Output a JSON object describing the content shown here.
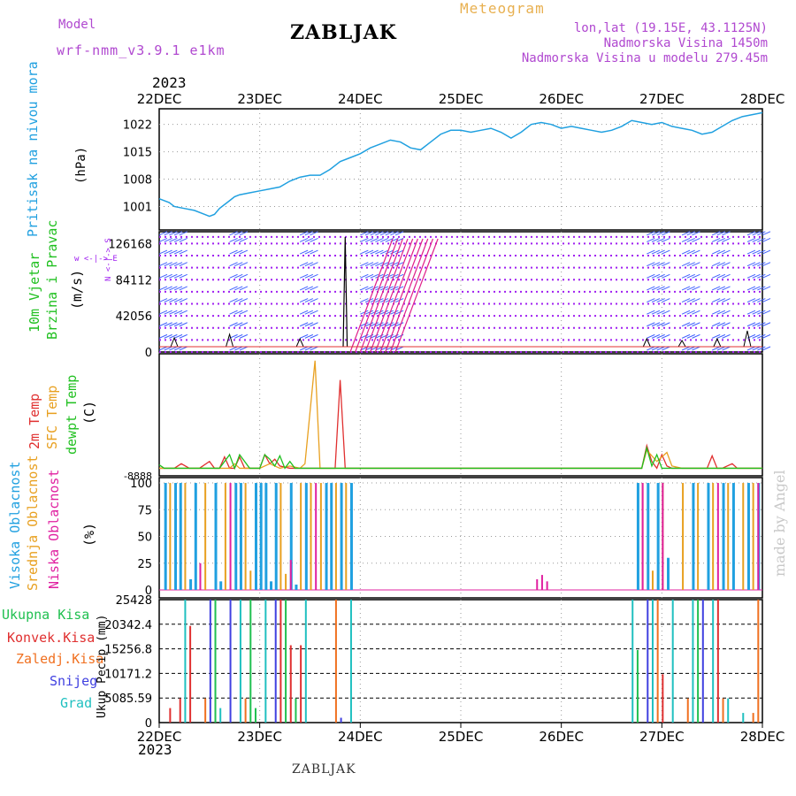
{
  "header": {
    "model_label": "Model",
    "model_name": "wrf-nmm_v3.9.1  e1km",
    "station": "ZABLJAK",
    "product": "Meteogram",
    "coords": "lon,lat (19.15E, 43.1125N)",
    "elevation": "Nadmorska Visina 1450m",
    "model_elevation": "Nadmorska Visina u modelu 279.45m",
    "year_top": "2023",
    "year_bottom": "2023",
    "footer": "ZABLJAK",
    "credit": "made by Angel"
  },
  "colors": {
    "pressure": "#20a0e0",
    "wind_dots": "#a020f0",
    "wind_barb": "#4060ff",
    "wind_magenta": "#e0208a",
    "t2m": "#e03030",
    "tsfc": "#e8a020",
    "dewpt": "#20c020",
    "high_cloud": "#20a0e0",
    "mid_cloud": "#e8a020",
    "low_cloud": "#e020a0",
    "precip_total": "#20c050",
    "precip_conv": "#e03030",
    "precip_frozen": "#f07020",
    "snow": "#4040e0",
    "hail": "#20c0c0"
  },
  "chart_data": [
    {
      "type": "line",
      "panel": "pressure",
      "label_left": "Pritisak na nivou mora",
      "ylabel": "(hPa)",
      "xticks": [
        "22DEC",
        "23DEC",
        "24DEC",
        "25DEC",
        "26DEC",
        "27DEC",
        "28DEC"
      ],
      "xlim": [
        0,
        6
      ],
      "ylim": [
        995,
        1026
      ],
      "yticks": [
        1001,
        1008,
        1015,
        1022
      ],
      "grid": true,
      "x": [
        0,
        0.1,
        0.15,
        0.25,
        0.35,
        0.45,
        0.5,
        0.55,
        0.6,
        0.65,
        0.7,
        0.75,
        0.8,
        0.9,
        1.0,
        1.1,
        1.2,
        1.3,
        1.4,
        1.5,
        1.6,
        1.7,
        1.8,
        1.9,
        2.0,
        2.1,
        2.2,
        2.3,
        2.4,
        2.5,
        2.6,
        2.7,
        2.8,
        2.9,
        3.0,
        3.1,
        3.2,
        3.3,
        3.4,
        3.5,
        3.6,
        3.7,
        3.8,
        3.9,
        4.0,
        4.1,
        4.2,
        4.3,
        4.4,
        4.5,
        4.6,
        4.7,
        4.8,
        4.9,
        5.0,
        5.1,
        5.2,
        5.3,
        5.4,
        5.5,
        5.6,
        5.7,
        5.8,
        5.9,
        6.0
      ],
      "values": [
        1003,
        1002,
        1001,
        1000.5,
        1000,
        999,
        998.5,
        999,
        1000.5,
        1001.5,
        1002.5,
        1003.5,
        1004,
        1004.5,
        1005,
        1005.5,
        1006,
        1007.5,
        1008.5,
        1009,
        1009,
        1010.5,
        1012.5,
        1013.5,
        1014.5,
        1016,
        1017,
        1018,
        1017.5,
        1016,
        1015.5,
        1017.5,
        1019.5,
        1020.5,
        1020.5,
        1020,
        1020.5,
        1021,
        1020,
        1018.5,
        1020,
        1022,
        1022.5,
        1022,
        1021,
        1021.5,
        1021,
        1020.5,
        1020,
        1020.5,
        1021.5,
        1023,
        1022.5,
        1022,
        1022.5,
        1021.5,
        1021,
        1020.5,
        1019.5,
        1020,
        1021.5,
        1023,
        1024,
        1024.5,
        1025
      ]
    },
    {
      "type": "scatter",
      "panel": "wind",
      "label_left": "10m Vjetar",
      "label_left2": "Brzina i Pravac",
      "ylabel": "(m/s)",
      "compass": "w <-|-> E",
      "compass_ns": "N <-|-> S",
      "ylim": [
        0,
        140000
      ],
      "yticks": [
        0,
        42056,
        84112,
        126168
      ],
      "rows": [
        0,
        14019,
        28037,
        42056,
        56075,
        70093,
        84112,
        98131,
        112149,
        126168,
        134000
      ],
      "spike_x": 1.85,
      "barb_groups": [
        [
          0.0,
          0.2
        ],
        [
          0.7,
          0.8
        ],
        [
          1.4,
          1.5
        ],
        [
          2.0,
          2.35
        ],
        [
          4.85,
          5.0
        ],
        [
          5.2,
          5.3
        ],
        [
          5.5,
          5.6
        ],
        [
          5.85,
          6.0
        ]
      ],
      "spikes": [
        [
          0.15,
          10
        ],
        [
          0.7,
          14
        ],
        [
          1.4,
          9
        ],
        [
          4.85,
          9
        ],
        [
          5.2,
          7
        ],
        [
          5.55,
          9
        ],
        [
          5.85,
          18
        ]
      ]
    },
    {
      "type": "line",
      "panel": "temperature",
      "label_left": "2m Temp",
      "label_left2": "SFC Temp",
      "label_left3": "dewpt Temp",
      "ylabel": "(C)",
      "ylim": [
        0,
        100
      ],
      "series": [
        {
          "name": "2m Temp",
          "x": [
            0,
            0.15,
            0.22,
            0.3,
            0.4,
            0.5,
            0.55,
            0.6,
            0.65,
            0.7,
            0.75,
            0.8,
            0.85,
            0.9,
            1.0,
            1.05,
            1.1,
            1.15,
            1.2,
            1.3,
            1.4,
            1.5,
            1.75,
            1.8,
            1.85,
            1.9,
            1.95,
            2.0,
            4.8,
            4.85,
            4.9,
            4.95,
            5.0,
            5.05,
            5.1,
            5.3,
            5.45,
            5.5,
            5.55,
            5.6,
            5.7,
            5.75,
            6.0
          ],
          "values": [
            2,
            2,
            6,
            2,
            2,
            8,
            2,
            2,
            12,
            2,
            2,
            12,
            2,
            2,
            2,
            14,
            6,
            10,
            4,
            2,
            2,
            2,
            2,
            80,
            2,
            2,
            2,
            2,
            2,
            22,
            8,
            2,
            14,
            4,
            2,
            2,
            2,
            13,
            2,
            2,
            6,
            2,
            2
          ]
        },
        {
          "name": "SFC Temp",
          "x": [
            0,
            0.3,
            0.4,
            0.6,
            0.7,
            0.75,
            0.8,
            1.0,
            1.1,
            1.2,
            1.3,
            1.4,
            1.45,
            1.55,
            1.6,
            1.7,
            2.0,
            4.8,
            4.85,
            4.95,
            5.05,
            5.1,
            5.2,
            5.5,
            5.6,
            6.0
          ],
          "values": [
            2,
            2,
            2,
            2,
            2,
            6,
            2,
            2,
            6,
            2,
            4,
            2,
            6,
            97,
            2,
            2,
            2,
            2,
            18,
            8,
            16,
            4,
            2,
            2,
            2,
            2
          ]
        },
        {
          "name": "dewpt Temp",
          "x": [
            0,
            0.05,
            0.6,
            0.7,
            0.75,
            0.8,
            0.9,
            1.0,
            1.05,
            1.1,
            1.15,
            1.2,
            1.25,
            1.3,
            1.35,
            1.4,
            1.5,
            2.0,
            4.8,
            4.85,
            4.9,
            4.95,
            5.0,
            5.1,
            6.0
          ],
          "values": [
            5,
            2,
            2,
            14,
            2,
            14,
            2,
            2,
            14,
            10,
            4,
            13,
            2,
            8,
            2,
            2,
            2,
            2,
            2,
            20,
            4,
            14,
            2,
            2,
            2
          ]
        }
      ]
    },
    {
      "type": "bar",
      "panel": "cloud",
      "label_left": "Visoka Oblacnost",
      "label_left2": "Srednja Oblacnost",
      "label_left3": "Niska Oblacnost",
      "ylabel": "(%)",
      "ylim": [
        0,
        105
      ],
      "yticks": [
        0,
        25,
        50,
        75,
        100
      ],
      "series": [
        {
          "name": "Visoka Oblacnost",
          "x": [
            0.05,
            0.15,
            0.2,
            0.3,
            0.35,
            0.55,
            0.6,
            0.75,
            0.8,
            0.95,
            1.0,
            1.05,
            1.1,
            1.15,
            1.3,
            1.35,
            1.45,
            1.65,
            1.7,
            1.8,
            1.9,
            4.75,
            4.85,
            4.95,
            5.05,
            5.3,
            5.45,
            5.6,
            5.7,
            5.85,
            5.95
          ],
          "values": [
            100,
            100,
            100,
            10,
            100,
            100,
            8,
            100,
            100,
            100,
            100,
            100,
            8,
            100,
            100,
            5,
            100,
            100,
            100,
            100,
            100,
            100,
            100,
            100,
            30,
            100,
            100,
            100,
            100,
            100,
            100
          ]
        },
        {
          "name": "Srednja Oblacnost",
          "x": [
            0.1,
            0.25,
            0.45,
            0.65,
            0.85,
            0.9,
            1.2,
            1.25,
            1.4,
            1.5,
            1.6,
            1.75,
            1.85,
            4.8,
            4.9,
            5.0,
            5.2,
            5.35,
            5.5,
            5.65,
            5.8,
            5.9
          ],
          "values": [
            100,
            100,
            100,
            100,
            100,
            18,
            100,
            15,
            100,
            100,
            100,
            100,
            100,
            100,
            18,
            100,
            100,
            100,
            100,
            100,
            100,
            100
          ]
        },
        {
          "name": "Niska Oblacnost",
          "x": [
            0.4,
            0.7,
            1.3,
            1.55,
            3.75,
            3.8,
            3.85,
            4.8,
            5.0,
            5.55,
            5.95
          ],
          "values": [
            25,
            100,
            28,
            100,
            10,
            14,
            8,
            100,
            100,
            100,
            100
          ]
        }
      ]
    },
    {
      "type": "bar",
      "panel": "precip",
      "label_left": "Ukupna Kisa",
      "label_left2": "Konvek.Kisa",
      "label_left3": "Zaledj.Kisa",
      "label_left4": "Snijeg",
      "label_left5": "Grad",
      "ylabel": "Ukup Pecip (mm)",
      "ylim": [
        0,
        25428
      ],
      "yticks": [
        0,
        5085.59,
        10171.2,
        15256.8,
        20342.4,
        25428
      ],
      "tick_labels": [
        "0",
        "5085.59",
        "10171.2",
        "15256.8",
        "20342.4",
        "25428"
      ],
      "series": [
        {
          "name": "Ukupna Kisa",
          "x": [
            0.55,
            0.9,
            0.95,
            1.25,
            1.35,
            4.75,
            5.35
          ],
          "values": [
            25428,
            25428,
            3000,
            25428,
            5000,
            15000,
            25428
          ]
        },
        {
          "name": "Konvek.Kisa",
          "x": [
            0.1,
            0.2,
            0.3,
            1.2,
            1.3,
            1.4,
            5.0,
            5.55
          ],
          "values": [
            3000,
            5000,
            20000,
            25428,
            16000,
            16000,
            10000,
            25428
          ]
        },
        {
          "name": "Zaledj.Kisa",
          "x": [
            0.45,
            0.85,
            1.75,
            4.95,
            5.25,
            5.6,
            5.9,
            5.95
          ],
          "values": [
            5000,
            5000,
            25428,
            25428,
            5000,
            5000,
            2000,
            25428
          ]
        },
        {
          "name": "Snijeg",
          "x": [
            0.5,
            0.7,
            1.15,
            1.8,
            4.85,
            5.4
          ],
          "values": [
            25428,
            25428,
            25428,
            1000,
            25428,
            25428
          ]
        },
        {
          "name": "Grad",
          "x": [
            0.25,
            0.6,
            0.8,
            1.05,
            1.45,
            1.9,
            4.7,
            4.9,
            5.1,
            5.3,
            5.5,
            5.65,
            5.8
          ],
          "values": [
            25428,
            3000,
            25428,
            25428,
            25428,
            25428,
            25428,
            25428,
            25428,
            25428,
            25428,
            5000,
            2000
          ]
        }
      ]
    }
  ]
}
